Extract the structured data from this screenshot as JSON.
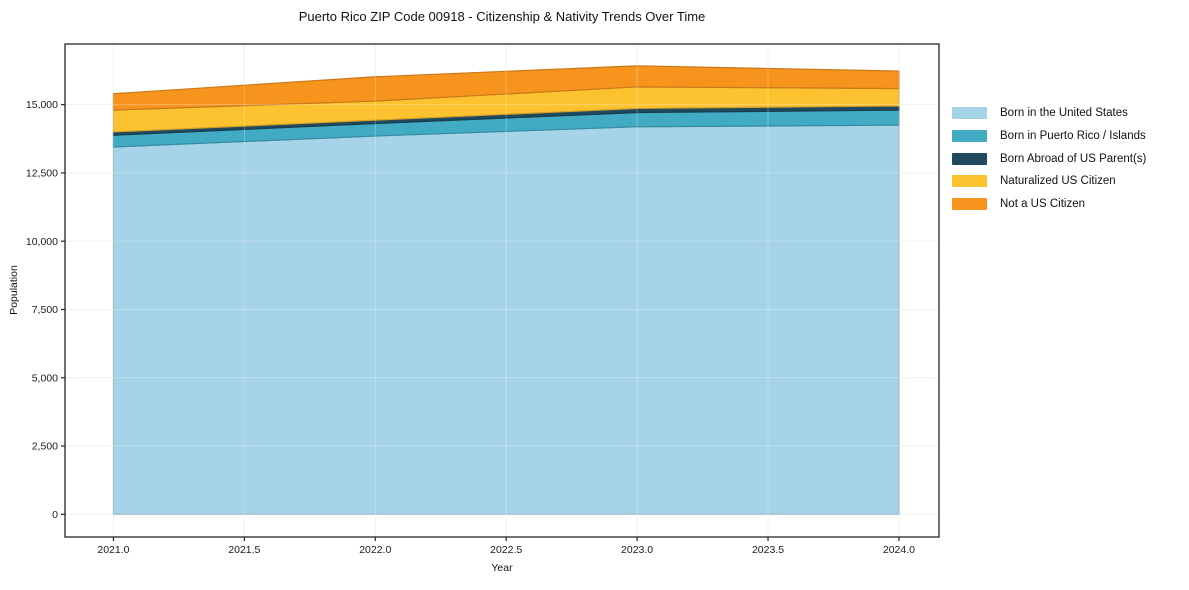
{
  "chart": {
    "title": "Puerto Rico ZIP Code 00918 - Citizenship & Nativity Trends Over Time",
    "xlabel": "Year",
    "ylabel": "Population"
  },
  "chart_data": {
    "type": "area",
    "stacked": true,
    "title": "Puerto Rico ZIP Code 00918 - Citizenship & Nativity Trends Over Time",
    "xlabel": "Year",
    "ylabel": "Population",
    "x": [
      2021,
      2022,
      2023,
      2024
    ],
    "series": [
      {
        "name": "Born in the United States",
        "color": "#a5d3e8",
        "values": [
          13450,
          13850,
          14190,
          14250
        ]
      },
      {
        "name": "Born in Puerto Rico / Islands",
        "color": "#41abc4",
        "values": [
          430,
          460,
          520,
          550
        ]
      },
      {
        "name": "Born Abroad of US Parent(s)",
        "color": "#1f4a5f",
        "values": [
          120,
          120,
          150,
          150
        ]
      },
      {
        "name": "Naturalized US Citizen",
        "color": "#fdc22f",
        "values": [
          800,
          700,
          790,
          640
        ]
      },
      {
        "name": "Not a US Citizen",
        "color": "#f6941e",
        "values": [
          600,
          890,
          770,
          640
        ]
      }
    ],
    "stack_totals": [
      15400,
      16020,
      16420,
      16230
    ],
    "xlim": [
      2020.815,
      2024.153
    ],
    "ylim": [
      -830,
      17220
    ],
    "x_ticks": [
      {
        "v": 2021.0,
        "label": "2021.0"
      },
      {
        "v": 2021.5,
        "label": "2021.5"
      },
      {
        "v": 2022.0,
        "label": "2022.0"
      },
      {
        "v": 2022.5,
        "label": "2022.5"
      },
      {
        "v": 2023.0,
        "label": "2023.0"
      },
      {
        "v": 2023.5,
        "label": "2023.5"
      },
      {
        "v": 2024.0,
        "label": "2024.0"
      }
    ],
    "y_ticks": [
      {
        "v": 0,
        "label": "0"
      },
      {
        "v": 2500,
        "label": "2,500"
      },
      {
        "v": 5000,
        "label": "5,000"
      },
      {
        "v": 7500,
        "label": "7,500"
      },
      {
        "v": 10000,
        "label": "10,000"
      },
      {
        "v": 12500,
        "label": "12,500"
      },
      {
        "v": 15000,
        "label": "15,000"
      }
    ],
    "grid": true,
    "grid_color": "#e9edf0",
    "spine_color": "#262626",
    "legend_position": "right-outside"
  }
}
